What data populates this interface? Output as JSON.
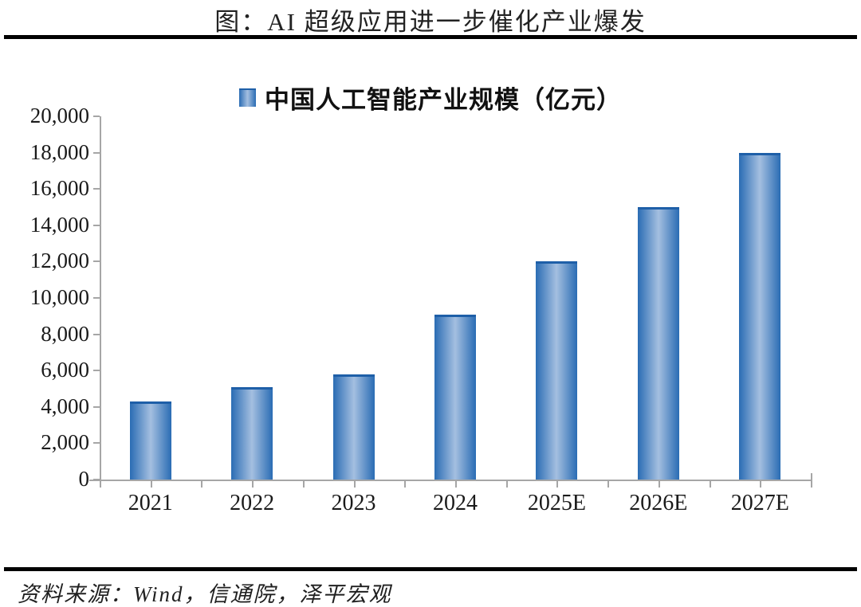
{
  "header": {
    "title": "图：AI 超级应用进一步催化产业爆发"
  },
  "footer": {
    "source": "资料来源：Wind，信通院，泽平宏观"
  },
  "chart_data": {
    "type": "bar",
    "title": "图：AI 超级应用进一步催化产业爆发",
    "legend": [
      "中国人工智能产业规模（亿元）"
    ],
    "legend_position": "top-center",
    "categories": [
      "2021",
      "2022",
      "2023",
      "2024",
      "2025E",
      "2026E",
      "2027E"
    ],
    "values": [
      4300,
      5080,
      5800,
      9100,
      12000,
      15000,
      18000
    ],
    "xlabel": "",
    "ylabel": "",
    "ylim": [
      0,
      20000
    ],
    "ytick_step": 2000,
    "ytick_labels": [
      "0",
      "2,000",
      "4,000",
      "6,000",
      "8,000",
      "10,000",
      "12,000",
      "14,000",
      "16,000",
      "18,000",
      "20,000"
    ],
    "grid": false,
    "colors": {
      "bar_edge": "#2a6cb4",
      "bar_center": "#a4bfe0",
      "bar_top_line": "#1e5fa8",
      "axis": "#a6a6a6",
      "text": "#1a1a1a"
    }
  }
}
